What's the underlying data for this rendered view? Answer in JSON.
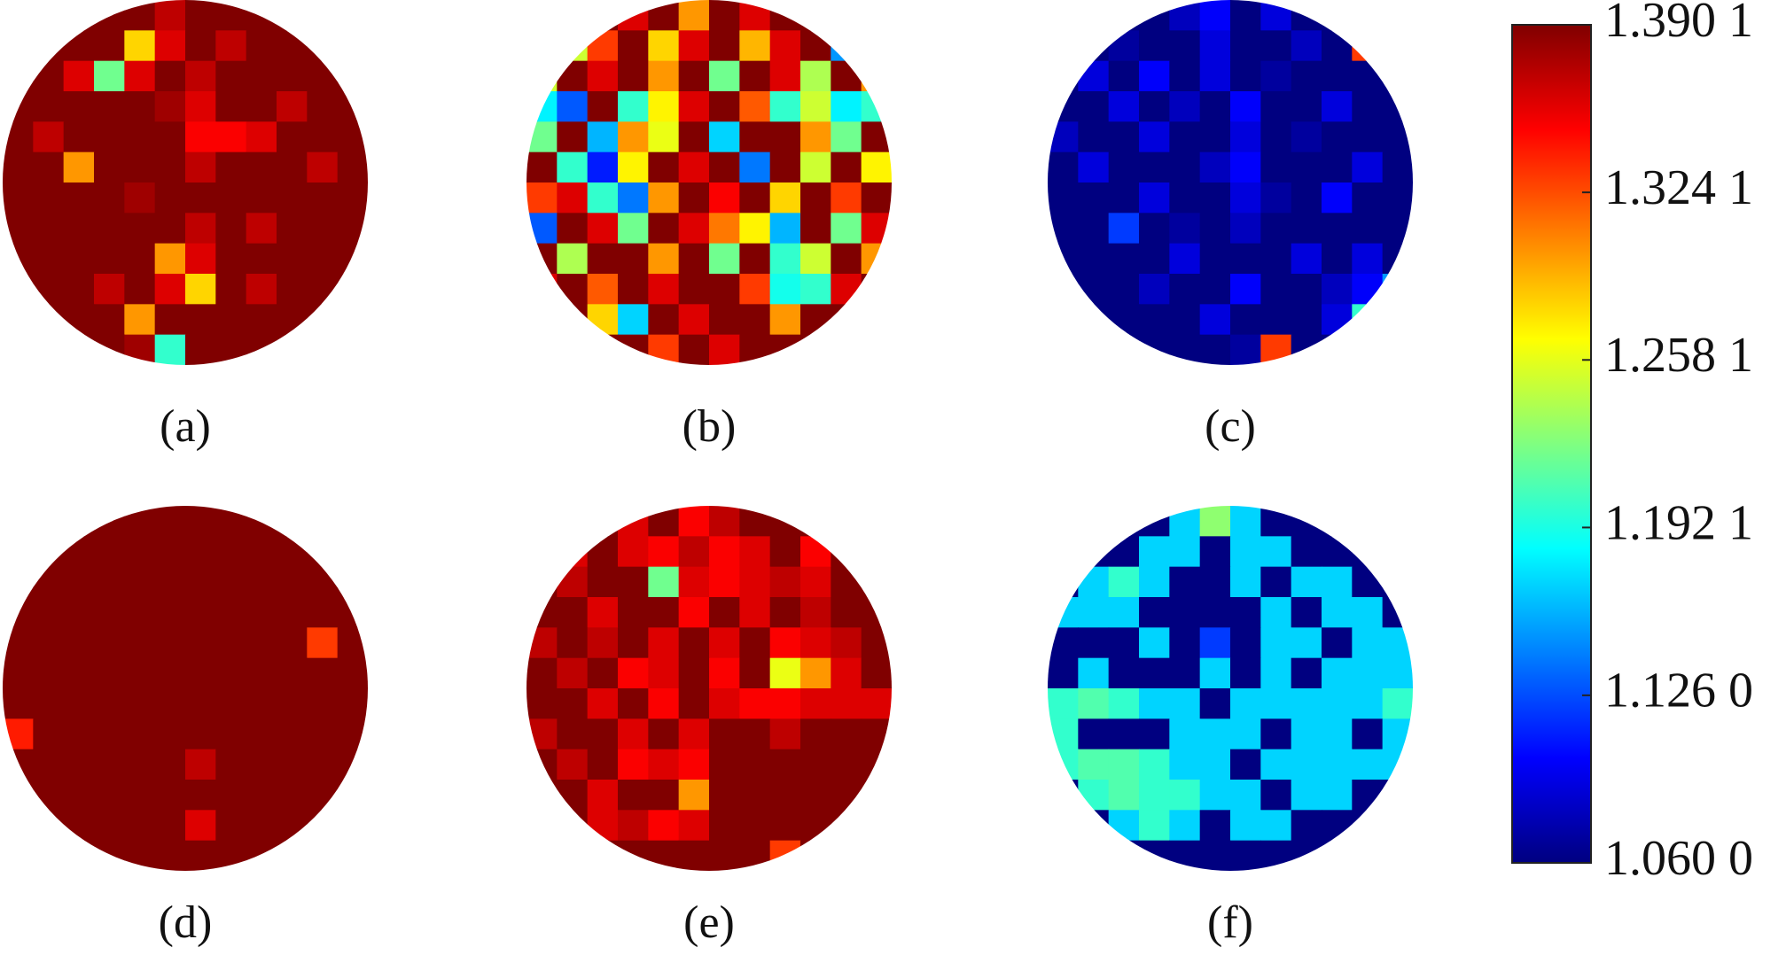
{
  "chart_data": {
    "type": "heatmap",
    "colormap": "jet",
    "clim": [
      1.06,
      1.3901
    ],
    "cticks": [
      {
        "value": 1.3901,
        "label": "1.390 1"
      },
      {
        "value": 1.3241,
        "label": "1.324 1"
      },
      {
        "value": 1.2581,
        "label": "1.258 1"
      },
      {
        "value": 1.1921,
        "label": "1.192 1"
      },
      {
        "value": 1.126,
        "label": "1.126 0"
      },
      {
        "value": 1.06,
        "label": "1.060 0"
      }
    ],
    "panels": [
      {
        "label": "(a)",
        "values": [
          [
            null,
            null,
            1.39,
            1.39,
            1.39,
            1.37,
            1.39,
            1.39,
            1.39,
            1.39,
            null,
            null
          ],
          [
            null,
            1.39,
            1.39,
            1.39,
            1.28,
            1.36,
            1.39,
            1.37,
            1.39,
            1.39,
            1.39,
            null
          ],
          [
            1.39,
            1.39,
            1.36,
            1.22,
            1.36,
            1.39,
            1.37,
            1.39,
            1.39,
            1.39,
            1.39,
            1.39
          ],
          [
            1.39,
            1.39,
            1.39,
            1.39,
            1.39,
            1.38,
            1.36,
            1.39,
            1.39,
            1.37,
            1.39,
            1.39
          ],
          [
            1.39,
            1.37,
            1.39,
            1.39,
            1.39,
            1.39,
            1.35,
            1.35,
            1.36,
            1.39,
            1.39,
            1.39
          ],
          [
            1.39,
            1.39,
            1.3,
            1.39,
            1.39,
            1.39,
            1.37,
            1.39,
            1.39,
            1.39,
            1.37,
            1.39
          ],
          [
            1.39,
            1.39,
            1.39,
            1.39,
            1.38,
            1.39,
            1.39,
            1.39,
            1.39,
            1.39,
            1.39,
            1.39
          ],
          [
            1.39,
            1.39,
            1.39,
            1.39,
            1.39,
            1.39,
            1.37,
            1.39,
            1.37,
            1.39,
            1.39,
            1.39
          ],
          [
            1.39,
            1.39,
            1.39,
            1.39,
            1.39,
            1.3,
            1.36,
            1.39,
            1.39,
            1.39,
            1.39,
            1.39
          ],
          [
            1.39,
            1.39,
            1.39,
            1.37,
            1.39,
            1.36,
            1.28,
            1.39,
            1.37,
            1.39,
            1.39,
            1.39
          ],
          [
            null,
            1.39,
            1.39,
            1.39,
            1.3,
            1.39,
            1.39,
            1.39,
            1.39,
            1.39,
            1.39,
            null
          ],
          [
            null,
            null,
            1.39,
            1.39,
            1.38,
            1.2,
            1.39,
            1.39,
            1.39,
            1.39,
            null,
            null
          ]
        ]
      },
      {
        "label": "(b)",
        "values": [
          [
            null,
            null,
            1.39,
            1.36,
            1.39,
            1.3,
            1.39,
            1.36,
            1.39,
            1.39,
            null,
            null
          ],
          [
            null,
            1.25,
            1.33,
            1.39,
            1.28,
            1.36,
            1.39,
            1.29,
            1.36,
            1.39,
            1.15,
            null
          ],
          [
            1.25,
            1.39,
            1.36,
            1.39,
            1.3,
            1.39,
            1.22,
            1.39,
            1.36,
            1.24,
            1.39,
            1.3
          ],
          [
            1.18,
            1.13,
            1.39,
            1.2,
            1.27,
            1.36,
            1.39,
            1.32,
            1.2,
            1.25,
            1.18,
            1.2
          ],
          [
            1.22,
            1.39,
            1.16,
            1.3,
            1.26,
            1.39,
            1.17,
            1.39,
            1.39,
            1.3,
            1.22,
            1.39
          ],
          [
            1.39,
            1.2,
            1.11,
            1.27,
            1.39,
            1.36,
            1.39,
            1.14,
            1.39,
            1.25,
            1.39,
            1.27
          ],
          [
            1.33,
            1.36,
            1.2,
            1.14,
            1.3,
            1.39,
            1.35,
            1.39,
            1.28,
            1.39,
            1.33,
            1.39
          ],
          [
            1.13,
            1.39,
            1.36,
            1.22,
            1.39,
            1.36,
            1.31,
            1.27,
            1.16,
            1.39,
            1.22,
            1.36
          ],
          [
            1.39,
            1.24,
            1.39,
            1.39,
            1.3,
            1.39,
            1.22,
            1.39,
            1.2,
            1.25,
            1.39,
            1.3
          ],
          [
            1.36,
            1.39,
            1.32,
            1.39,
            1.36,
            1.39,
            1.39,
            1.33,
            1.19,
            1.2,
            1.36,
            1.39
          ],
          [
            null,
            1.39,
            1.28,
            1.17,
            1.39,
            1.36,
            1.39,
            1.39,
            1.3,
            1.39,
            1.39,
            null
          ],
          [
            null,
            null,
            1.39,
            1.39,
            1.33,
            1.39,
            1.36,
            1.39,
            1.39,
            1.39,
            null,
            null
          ]
        ]
      },
      {
        "label": "(c)",
        "values": [
          [
            null,
            null,
            1.06,
            1.06,
            1.08,
            1.1,
            1.06,
            1.09,
            1.06,
            1.06,
            null,
            null
          ],
          [
            null,
            1.06,
            1.07,
            1.06,
            1.06,
            1.09,
            1.06,
            1.06,
            1.08,
            1.06,
            1.33,
            null
          ],
          [
            1.06,
            1.09,
            1.06,
            1.1,
            1.06,
            1.09,
            1.06,
            1.07,
            1.06,
            1.06,
            1.06,
            1.06
          ],
          [
            1.06,
            1.06,
            1.09,
            1.06,
            1.08,
            1.06,
            1.1,
            1.06,
            1.06,
            1.09,
            1.06,
            1.06
          ],
          [
            1.08,
            1.06,
            1.06,
            1.09,
            1.06,
            1.06,
            1.09,
            1.06,
            1.07,
            1.06,
            1.06,
            1.06
          ],
          [
            1.06,
            1.09,
            1.06,
            1.06,
            1.06,
            1.08,
            1.1,
            1.06,
            1.06,
            1.06,
            1.09,
            1.06
          ],
          [
            1.06,
            1.06,
            1.06,
            1.09,
            1.06,
            1.06,
            1.09,
            1.07,
            1.06,
            1.1,
            1.06,
            1.06
          ],
          [
            1.06,
            1.06,
            1.12,
            1.06,
            1.07,
            1.06,
            1.08,
            1.06,
            1.06,
            1.06,
            1.06,
            1.06
          ],
          [
            1.06,
            1.06,
            1.06,
            1.06,
            1.09,
            1.06,
            1.06,
            1.06,
            1.09,
            1.06,
            1.09,
            1.06
          ],
          [
            1.06,
            1.06,
            1.06,
            1.08,
            1.06,
            1.06,
            1.1,
            1.06,
            1.06,
            1.08,
            1.1,
            1.15
          ],
          [
            null,
            1.06,
            1.06,
            1.06,
            1.06,
            1.09,
            1.06,
            1.06,
            1.06,
            1.09,
            1.2,
            null
          ],
          [
            null,
            null,
            1.06,
            1.06,
            1.06,
            1.06,
            1.07,
            1.33,
            1.06,
            1.06,
            null,
            null
          ]
        ]
      },
      {
        "label": "(d)",
        "values": [
          [
            null,
            null,
            1.39,
            1.39,
            1.39,
            1.39,
            1.39,
            1.39,
            1.39,
            1.39,
            null,
            null
          ],
          [
            null,
            1.39,
            1.39,
            1.39,
            1.39,
            1.39,
            1.39,
            1.39,
            1.39,
            1.39,
            1.39,
            null
          ],
          [
            1.39,
            1.39,
            1.39,
            1.39,
            1.39,
            1.39,
            1.39,
            1.39,
            1.39,
            1.39,
            1.39,
            1.39
          ],
          [
            1.39,
            1.39,
            1.39,
            1.39,
            1.39,
            1.39,
            1.39,
            1.39,
            1.39,
            1.39,
            1.39,
            1.39
          ],
          [
            1.39,
            1.39,
            1.39,
            1.39,
            1.39,
            1.39,
            1.39,
            1.39,
            1.39,
            1.39,
            1.33,
            1.39
          ],
          [
            1.39,
            1.39,
            1.39,
            1.39,
            1.39,
            1.39,
            1.39,
            1.39,
            1.39,
            1.39,
            1.39,
            1.39
          ],
          [
            1.39,
            1.39,
            1.39,
            1.39,
            1.39,
            1.39,
            1.39,
            1.39,
            1.39,
            1.39,
            1.39,
            1.39
          ],
          [
            1.34,
            1.39,
            1.39,
            1.39,
            1.39,
            1.39,
            1.39,
            1.39,
            1.39,
            1.39,
            1.39,
            1.39
          ],
          [
            1.39,
            1.39,
            1.39,
            1.39,
            1.39,
            1.39,
            1.37,
            1.39,
            1.39,
            1.39,
            1.39,
            1.39
          ],
          [
            1.39,
            1.39,
            1.39,
            1.39,
            1.39,
            1.39,
            1.39,
            1.39,
            1.39,
            1.39,
            1.39,
            1.39
          ],
          [
            null,
            1.39,
            1.39,
            1.39,
            1.39,
            1.39,
            1.36,
            1.39,
            1.39,
            1.39,
            1.39,
            null
          ],
          [
            null,
            null,
            1.39,
            1.39,
            1.39,
            1.39,
            1.39,
            1.39,
            1.39,
            1.39,
            null,
            null
          ]
        ]
      },
      {
        "label": "(e)",
        "values": [
          [
            null,
            null,
            1.39,
            1.36,
            1.39,
            1.35,
            1.37,
            1.39,
            1.39,
            1.39,
            null,
            null
          ],
          [
            null,
            1.36,
            1.39,
            1.36,
            1.35,
            1.37,
            1.35,
            1.36,
            1.39,
            1.35,
            1.39,
            null
          ],
          [
            1.39,
            1.37,
            1.39,
            1.39,
            1.22,
            1.36,
            1.35,
            1.36,
            1.37,
            1.36,
            1.39,
            1.39
          ],
          [
            1.39,
            1.39,
            1.36,
            1.39,
            1.39,
            1.35,
            1.39,
            1.36,
            1.39,
            1.37,
            1.39,
            1.39
          ],
          [
            1.37,
            1.39,
            1.37,
            1.39,
            1.36,
            1.39,
            1.36,
            1.39,
            1.35,
            1.36,
            1.37,
            1.39
          ],
          [
            1.39,
            1.37,
            1.39,
            1.35,
            1.36,
            1.39,
            1.35,
            1.39,
            1.26,
            1.3,
            1.36,
            1.39
          ],
          [
            1.39,
            1.39,
            1.36,
            1.39,
            1.35,
            1.39,
            1.36,
            1.35,
            1.35,
            1.36,
            1.36,
            1.36
          ],
          [
            1.37,
            1.39,
            1.39,
            1.36,
            1.39,
            1.36,
            1.39,
            1.39,
            1.37,
            1.39,
            1.39,
            1.39
          ],
          [
            1.39,
            1.37,
            1.39,
            1.35,
            1.36,
            1.35,
            1.39,
            1.39,
            1.39,
            1.39,
            1.39,
            1.39
          ],
          [
            1.39,
            1.39,
            1.36,
            1.39,
            1.39,
            1.3,
            1.39,
            1.39,
            1.39,
            1.39,
            1.39,
            1.39
          ],
          [
            null,
            1.39,
            1.36,
            1.37,
            1.35,
            1.36,
            1.39,
            1.39,
            1.39,
            1.39,
            1.39,
            null
          ],
          [
            null,
            null,
            1.39,
            1.39,
            1.39,
            1.39,
            1.39,
            1.39,
            1.33,
            1.39,
            null,
            null
          ]
        ]
      },
      {
        "label": "(f)",
        "values": [
          [
            null,
            null,
            1.06,
            1.06,
            1.17,
            1.23,
            1.17,
            1.06,
            1.06,
            1.06,
            null,
            null
          ],
          [
            null,
            1.06,
            1.06,
            1.17,
            1.17,
            1.06,
            1.17,
            1.17,
            1.06,
            1.06,
            1.06,
            null
          ],
          [
            1.06,
            1.17,
            1.2,
            1.17,
            1.06,
            1.06,
            1.17,
            1.06,
            1.17,
            1.17,
            1.06,
            1.06
          ],
          [
            1.17,
            1.17,
            1.17,
            1.06,
            1.06,
            1.06,
            1.06,
            1.17,
            1.06,
            1.17,
            1.17,
            1.06
          ],
          [
            1.06,
            1.06,
            1.06,
            1.17,
            1.06,
            1.12,
            1.06,
            1.17,
            1.17,
            1.06,
            1.17,
            1.17
          ],
          [
            1.06,
            1.17,
            1.06,
            1.06,
            1.06,
            1.17,
            1.06,
            1.17,
            1.06,
            1.17,
            1.17,
            1.17
          ],
          [
            1.2,
            1.21,
            1.2,
            1.17,
            1.17,
            1.06,
            1.17,
            1.17,
            1.17,
            1.17,
            1.17,
            1.2
          ],
          [
            1.2,
            1.06,
            1.06,
            1.06,
            1.17,
            1.17,
            1.17,
            1.06,
            1.17,
            1.17,
            1.06,
            1.17
          ],
          [
            1.2,
            1.21,
            1.21,
            1.2,
            1.17,
            1.17,
            1.06,
            1.17,
            1.17,
            1.17,
            1.17,
            1.17
          ],
          [
            1.06,
            1.2,
            1.21,
            1.2,
            1.2,
            1.17,
            1.17,
            1.06,
            1.17,
            1.17,
            1.06,
            1.06
          ],
          [
            null,
            1.06,
            1.17,
            1.2,
            1.17,
            1.06,
            1.17,
            1.17,
            1.06,
            1.06,
            1.06,
            null
          ],
          [
            null,
            null,
            1.06,
            1.06,
            1.06,
            1.06,
            1.06,
            1.06,
            1.06,
            1.06,
            null,
            null
          ]
        ]
      }
    ]
  }
}
